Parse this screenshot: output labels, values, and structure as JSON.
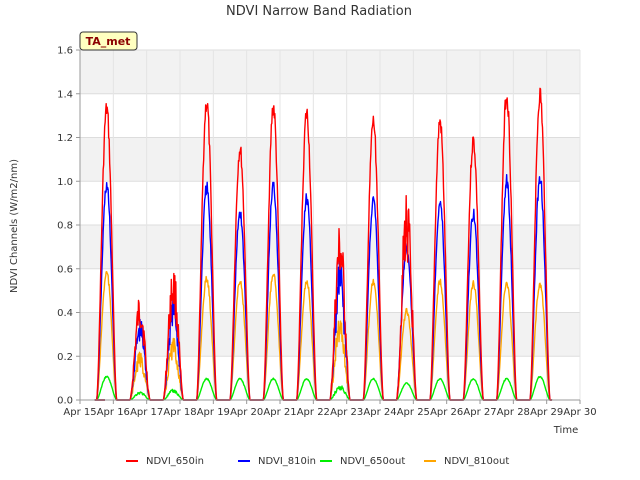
{
  "chart_data": {
    "type": "line",
    "title": "NDVI Narrow Band Radiation",
    "xlabel": "Time",
    "ylabel": "NDVI Channels (W/m2/nm)",
    "badge": "TA_met",
    "xlim": [
      15,
      30
    ],
    "ylim": [
      0.0,
      1.6
    ],
    "x_ticks": [
      15,
      16,
      17,
      18,
      19,
      20,
      21,
      22,
      23,
      24,
      25,
      26,
      27,
      28,
      29,
      30
    ],
    "x_tick_labels": [
      "Apr 15",
      "Apr 16",
      "Apr 17",
      "Apr 18",
      "Apr 19",
      "Apr 20",
      "Apr 21",
      "Apr 22",
      "Apr 23",
      "Apr 24",
      "Apr 25",
      "Apr 26",
      "Apr 27",
      "Apr 28",
      "Apr 29",
      "Apr 30"
    ],
    "y_ticks": [
      0.0,
      0.2,
      0.4,
      0.6,
      0.8,
      1.0,
      1.2,
      1.4,
      1.6
    ],
    "y_tick_labels": [
      "0.0",
      "0.2",
      "0.4",
      "0.6",
      "0.8",
      "1.0",
      "1.2",
      "1.4",
      "1.6"
    ],
    "grid": true,
    "legend_position": "bottom",
    "days": [
      15.8,
      16.8,
      17.8,
      18.8,
      19.8,
      20.8,
      21.8,
      22.8,
      23.8,
      24.8,
      25.8,
      26.8,
      27.8,
      28.8
    ],
    "series": [
      {
        "name": "NDVI_650in",
        "color": "#ff0000",
        "peaks": [
          1.37,
          0.49,
          0.62,
          1.4,
          1.18,
          1.38,
          1.35,
          0.82,
          1.31,
          0.97,
          1.31,
          1.22,
          1.44,
          1.44
        ]
      },
      {
        "name": "NDVI_810in",
        "color": "#0000ff",
        "peaks": [
          1.01,
          0.38,
          0.49,
          1.0,
          0.88,
          1.01,
          0.95,
          0.65,
          0.94,
          0.72,
          0.93,
          0.88,
          1.03,
          1.05
        ]
      },
      {
        "name": "NDVI_650out",
        "color": "#00ee00",
        "peaks": [
          0.11,
          0.04,
          0.05,
          0.1,
          0.1,
          0.1,
          0.1,
          0.07,
          0.1,
          0.08,
          0.1,
          0.1,
          0.1,
          0.11
        ]
      },
      {
        "name": "NDVI_810out",
        "color": "#ffa500",
        "peaks": [
          0.6,
          0.22,
          0.29,
          0.57,
          0.56,
          0.6,
          0.56,
          0.4,
          0.56,
          0.42,
          0.56,
          0.55,
          0.55,
          0.55
        ]
      }
    ]
  }
}
